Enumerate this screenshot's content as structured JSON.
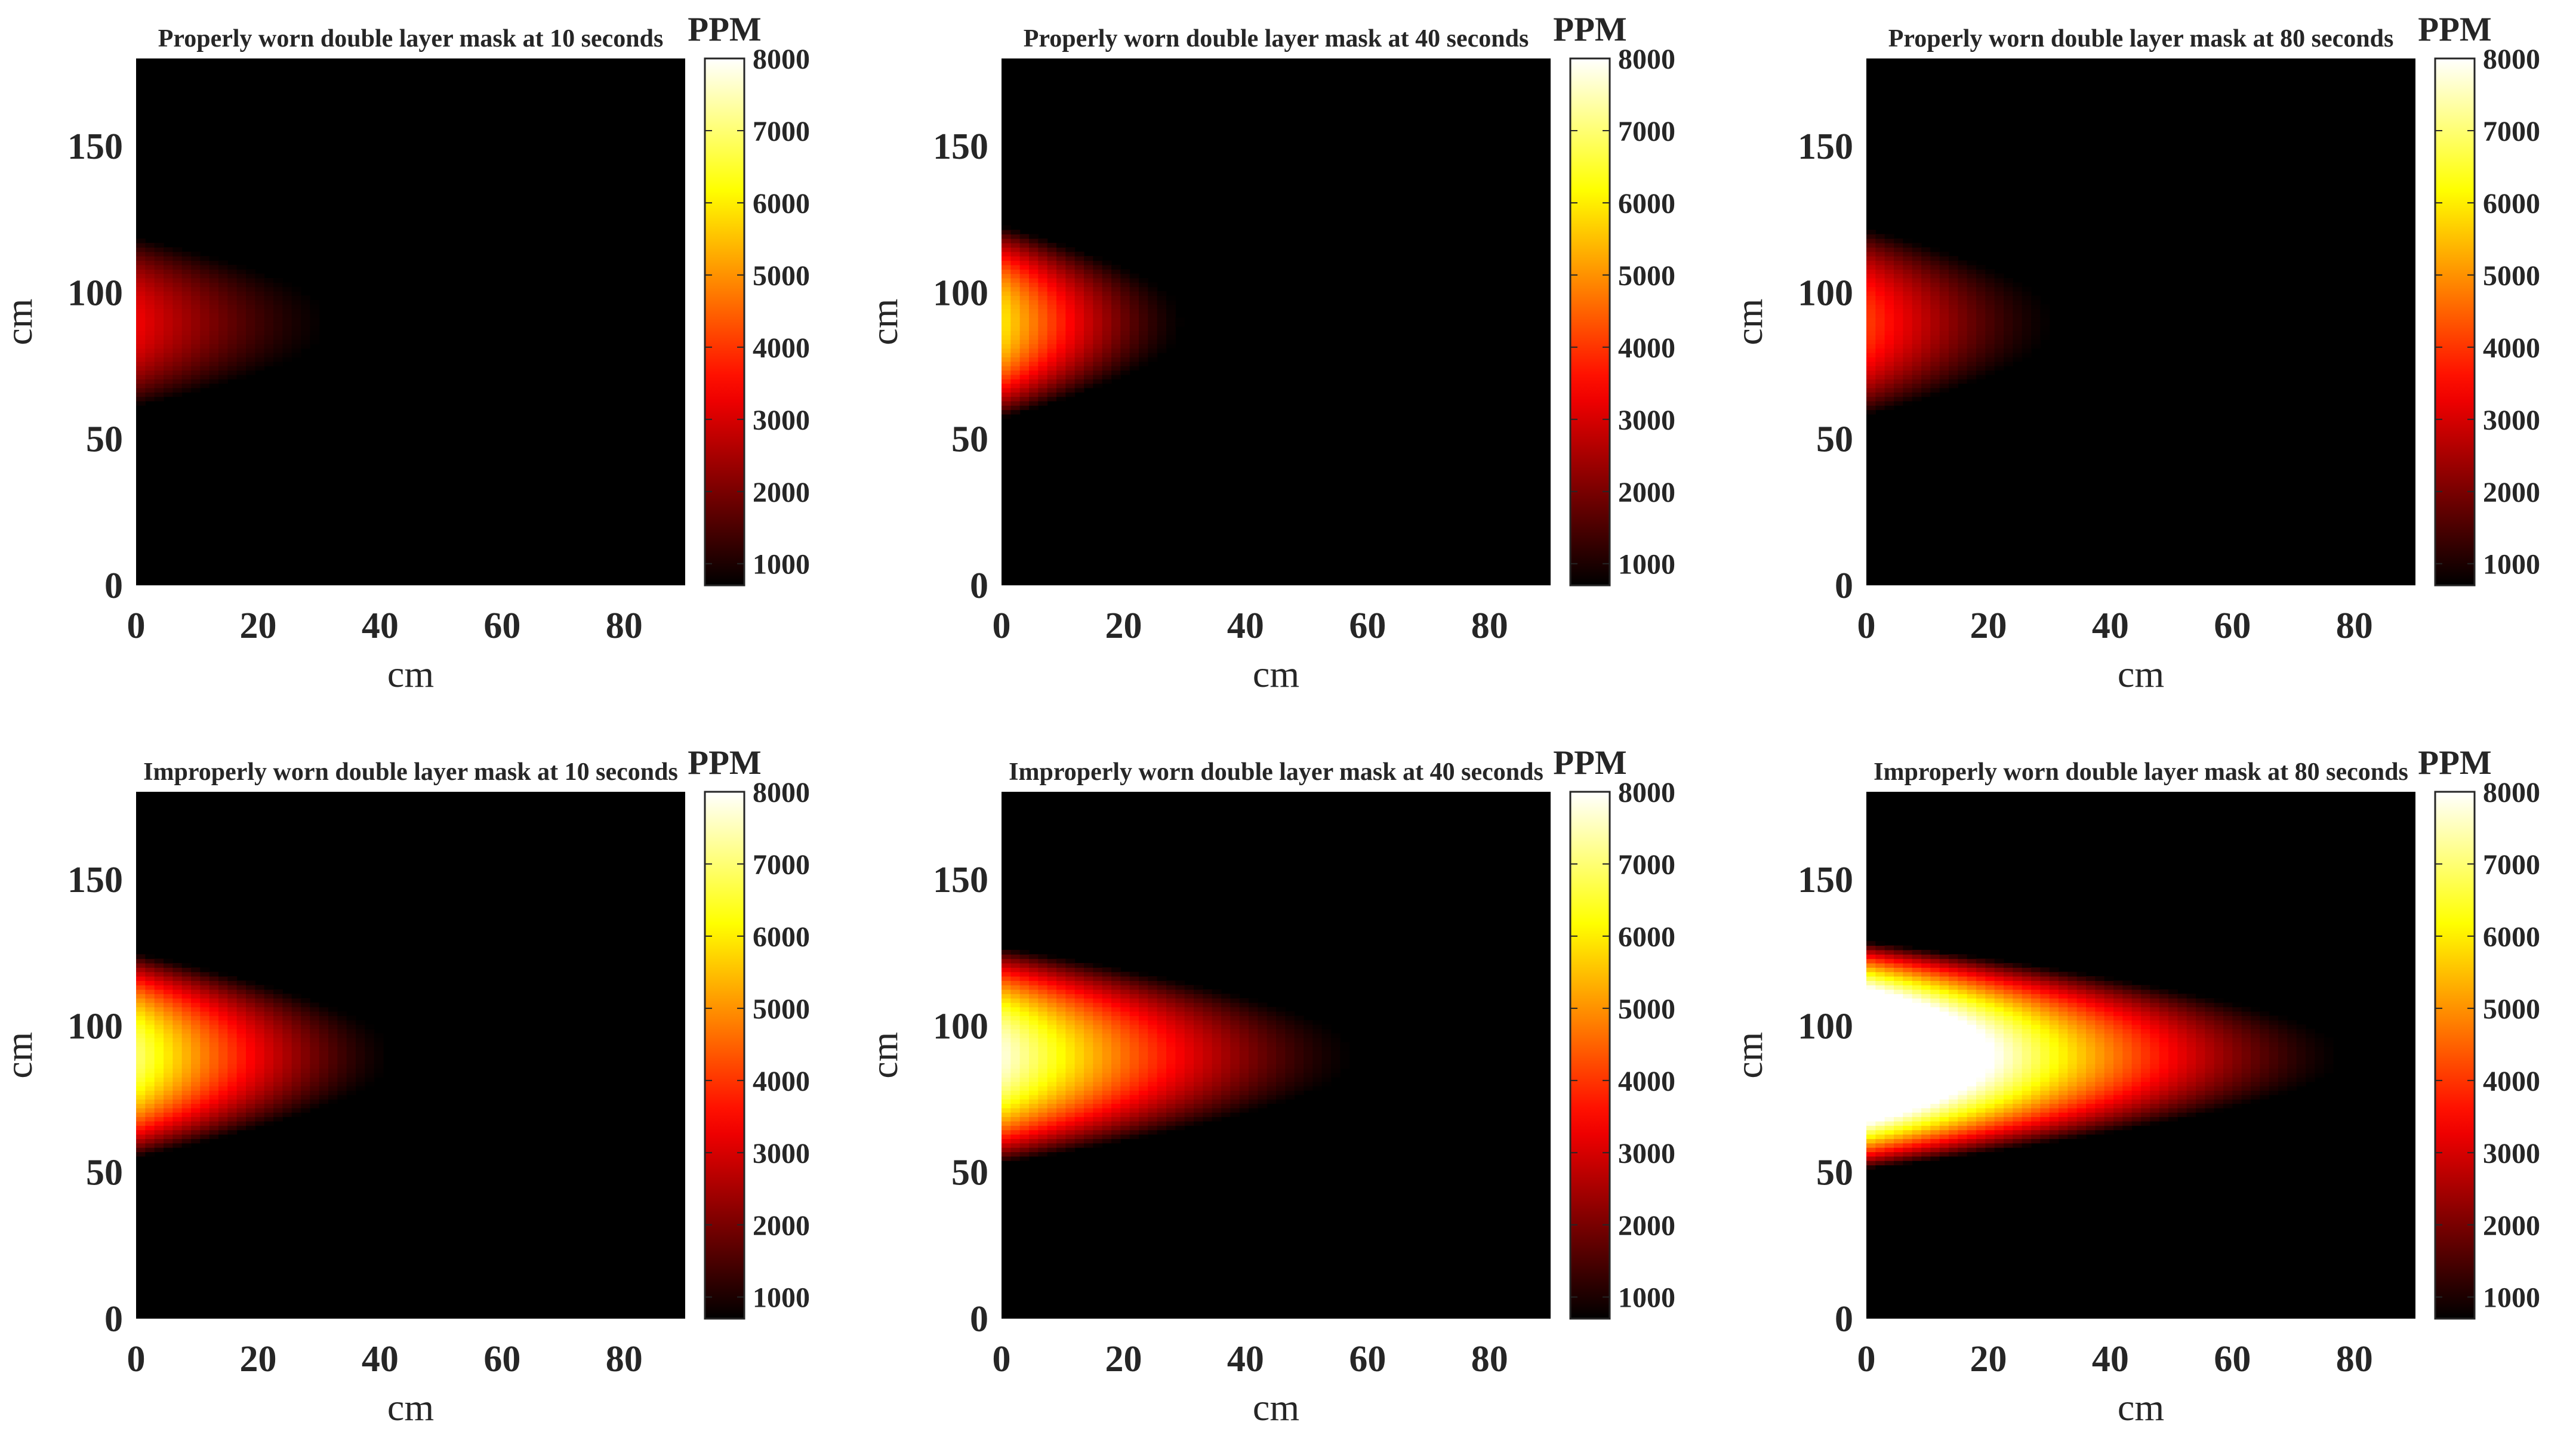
{
  "colors": {
    "background": "#ffffff",
    "text": "#262626",
    "colormap": "hot"
  },
  "chart_data": [
    {
      "type": "heatmap",
      "title": "Properly worn double layer mask at 10 seconds",
      "xlabel": "cm",
      "ylabel": "cm",
      "xlim": [
        0,
        90
      ],
      "ylim": [
        0,
        180
      ],
      "xticks": [
        0,
        20,
        40,
        60,
        80
      ],
      "yticks": [
        0,
        50,
        100,
        150
      ],
      "colorbar": {
        "label": "PPM",
        "range": [
          700,
          8000
        ],
        "ticks": [
          1000,
          2000,
          3000,
          4000,
          5000,
          6000,
          7000,
          8000
        ]
      },
      "plume": {
        "source_y_cm": 90,
        "source_ppm": 3300,
        "background_ppm": 700,
        "length_cm": 32,
        "half_width_cm": 26
      }
    },
    {
      "type": "heatmap",
      "title": "Properly worn double layer mask at 40 seconds",
      "xlabel": "cm",
      "ylabel": "cm",
      "xlim": [
        0,
        90
      ],
      "ylim": [
        0,
        180
      ],
      "xticks": [
        0,
        20,
        40,
        60,
        80
      ],
      "yticks": [
        0,
        50,
        100,
        150
      ],
      "colorbar": {
        "label": "PPM",
        "range": [
          700,
          8000
        ],
        "ticks": [
          1000,
          2000,
          3000,
          4000,
          5000,
          6000,
          7000,
          8000
        ]
      },
      "plume": {
        "source_y_cm": 90,
        "source_ppm": 6000,
        "background_ppm": 700,
        "length_cm": 30,
        "half_width_cm": 30
      }
    },
    {
      "type": "heatmap",
      "title": "Properly worn double layer mask at 80 seconds",
      "xlabel": "cm",
      "ylabel": "cm",
      "xlim": [
        0,
        90
      ],
      "ylim": [
        0,
        180
      ],
      "xticks": [
        0,
        20,
        40,
        60,
        80
      ],
      "yticks": [
        0,
        50,
        100,
        150
      ],
      "colorbar": {
        "label": "PPM",
        "range": [
          700,
          8000
        ],
        "ticks": [
          1000,
          2000,
          3000,
          4000,
          5000,
          6000,
          7000,
          8000
        ]
      },
      "plume": {
        "source_y_cm": 90,
        "source_ppm": 4100,
        "background_ppm": 700,
        "length_cm": 31,
        "half_width_cm": 29
      }
    },
    {
      "type": "heatmap",
      "title": "Improperly worn double layer mask at 10 seconds",
      "xlabel": "cm",
      "ylabel": "cm",
      "xlim": [
        0,
        90
      ],
      "ylim": [
        0,
        180
      ],
      "xticks": [
        0,
        20,
        40,
        60,
        80
      ],
      "yticks": [
        0,
        50,
        100,
        150
      ],
      "colorbar": {
        "label": "PPM",
        "range": [
          700,
          8000
        ],
        "ticks": [
          1000,
          2000,
          3000,
          4000,
          5000,
          6000,
          7000,
          8000
        ]
      },
      "plume": {
        "source_y_cm": 90,
        "source_ppm": 7000,
        "background_ppm": 700,
        "length_cm": 42,
        "half_width_cm": 32
      }
    },
    {
      "type": "heatmap",
      "title": "Improperly worn double layer mask at 40 seconds",
      "xlabel": "cm",
      "ylabel": "cm",
      "xlim": [
        0,
        90
      ],
      "ylim": [
        0,
        180
      ],
      "xticks": [
        0,
        20,
        40,
        60,
        80
      ],
      "yticks": [
        0,
        50,
        100,
        150
      ],
      "colorbar": {
        "label": "PPM",
        "range": [
          700,
          8000
        ],
        "ticks": [
          1000,
          2000,
          3000,
          4000,
          5000,
          6000,
          7000,
          8000
        ]
      },
      "plume": {
        "source_y_cm": 90,
        "source_ppm": 7800,
        "background_ppm": 700,
        "length_cm": 58,
        "half_width_cm": 34
      }
    },
    {
      "type": "heatmap",
      "title": "Improperly worn double layer mask at 80 seconds",
      "xlabel": "cm",
      "ylabel": "cm",
      "xlim": [
        0,
        90
      ],
      "ylim": [
        0,
        180
      ],
      "xticks": [
        0,
        20,
        40,
        60,
        80
      ],
      "yticks": [
        0,
        50,
        100,
        150
      ],
      "colorbar": {
        "label": "PPM",
        "range": [
          700,
          8000
        ],
        "ticks": [
          1000,
          2000,
          3000,
          4000,
          5000,
          6000,
          7000,
          8000
        ]
      },
      "plume": {
        "source_y_cm": 90,
        "source_ppm": 12000,
        "background_ppm": 700,
        "length_cm": 78,
        "half_width_cm": 36
      }
    }
  ]
}
